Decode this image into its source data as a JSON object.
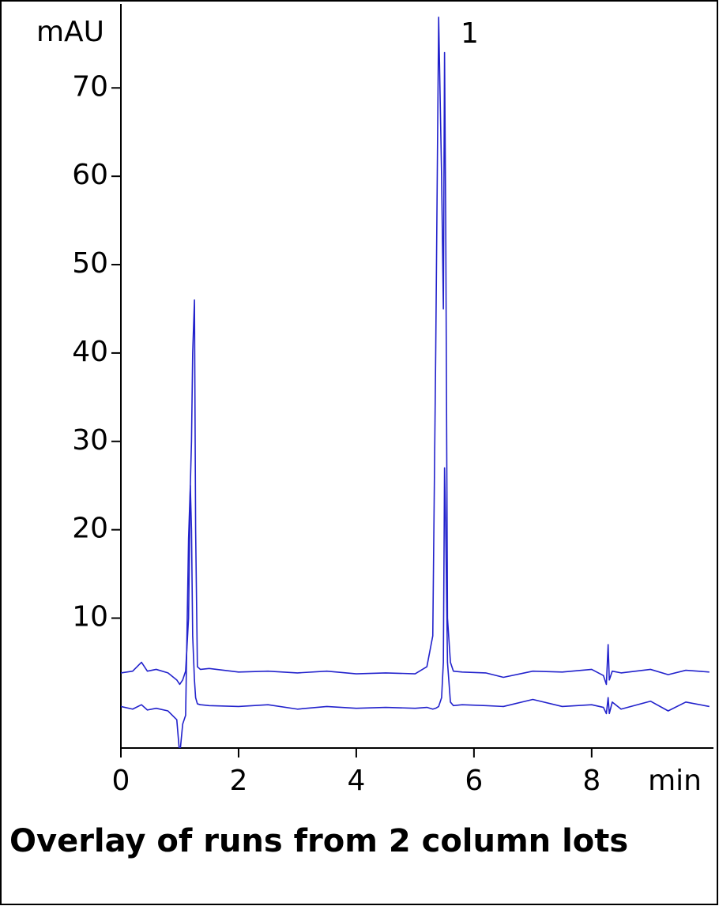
{
  "chart_data": {
    "type": "line",
    "title": "Overlay of runs from 2 column lots",
    "y_label": "mAU",
    "x_label": "min",
    "annotations": [
      "1"
    ],
    "x": [
      0,
      0.2,
      0.35,
      0.45,
      0.6,
      0.8,
      0.95,
      1.0,
      1.05,
      1.1,
      1.15,
      1.18,
      1.2,
      1.22,
      1.25,
      1.27,
      1.3,
      1.35,
      1.5,
      2,
      2.5,
      3,
      3.5,
      4,
      4.5,
      5,
      5.2,
      5.3,
      5.35,
      5.4,
      5.45,
      5.48,
      5.5,
      5.52,
      5.55,
      5.6,
      5.65,
      5.8,
      6.2,
      6.5,
      7,
      7.5,
      8,
      8.2,
      8.25,
      8.28,
      8.3,
      8.35,
      8.5,
      9,
      9.3,
      9.6,
      10
    ],
    "series": [
      {
        "color": "#2222cc",
        "values": [
          3.8,
          4.0,
          5.0,
          4.0,
          4.2,
          3.8,
          3.0,
          2.5,
          3.0,
          4.0,
          10,
          25,
          30,
          40,
          46,
          20,
          4.5,
          4.2,
          4.3,
          3.9,
          4.0,
          3.8,
          4.0,
          3.7,
          3.8,
          3.7,
          4.5,
          8,
          40,
          78,
          60,
          45,
          74,
          55,
          10,
          5,
          4.0,
          3.9,
          3.8,
          3.3,
          4.0,
          3.9,
          4.2,
          3.5,
          2.5,
          7.0,
          3.0,
          4.0,
          3.8,
          4.2,
          3.6,
          4.1,
          3.9
        ]
      },
      {
        "color": "#2222cc",
        "values": [
          0,
          -0.3,
          0.2,
          -0.4,
          -0.2,
          -0.5,
          -1.5,
          -5.5,
          -2,
          -1,
          19,
          25,
          20,
          8,
          3,
          1,
          0.3,
          0.2,
          0.1,
          0,
          0.2,
          -0.3,
          0,
          -0.2,
          -0.1,
          -0.2,
          -0.1,
          -0.3,
          -0.2,
          0,
          1,
          5,
          27,
          20,
          5,
          0.5,
          0.1,
          0.2,
          0.1,
          0,
          0.8,
          0,
          0.2,
          -0.1,
          -0.8,
          1.0,
          -0.8,
          0.5,
          -0.3,
          0.6,
          -0.5,
          0.5,
          0
        ]
      }
    ],
    "xlim": [
      0,
      10.07
    ],
    "xticks": [
      0,
      2,
      4,
      6,
      8
    ],
    "ylim": [
      -4.7,
      79.5
    ],
    "yticks": [
      10,
      20,
      30,
      40,
      50,
      60,
      70
    ],
    "grid": false
  }
}
